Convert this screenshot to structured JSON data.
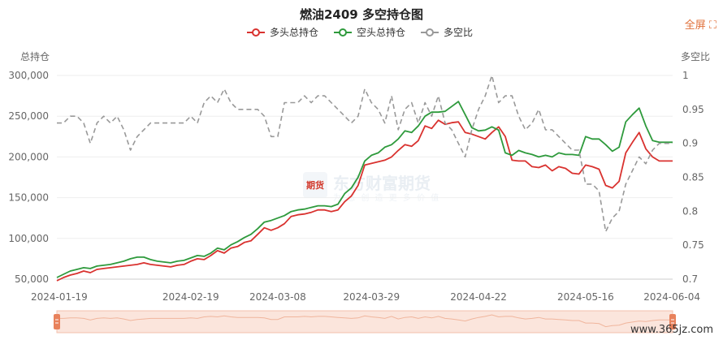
{
  "header": {
    "title": "燃油2409 多空持仓图",
    "fullscreen_label": "全屏"
  },
  "axes": {
    "left_title": "总持仓",
    "right_title": "多空比",
    "x_ticks": [
      "2024-01-19",
      "2024-02-19",
      "2024-03-08",
      "2024-03-29",
      "2024-04-22",
      "2024-05-16",
      "2024-06-04"
    ],
    "left_ticks": [
      "50,000",
      "100,000",
      "150,000",
      "200,000",
      "250,000",
      "300,000"
    ],
    "right_ticks": [
      "0.7",
      "0.75",
      "0.8",
      "0.85",
      "0.9",
      "0.95",
      "1"
    ]
  },
  "watermark": {
    "logo_text": "期货",
    "title": "东方财富期货",
    "subtitle": "为 您 创 造 更 多 价 值"
  },
  "site": {
    "text": "www.365jz.com"
  },
  "colors": {
    "long": "#d9322f",
    "short": "#2e9a3c",
    "ratio": "#999999"
  },
  "chart_data": {
    "type": "line",
    "title": "燃油2409 多空持仓图",
    "xlabel": "",
    "ylabel": "总持仓",
    "y2label": "多空比",
    "ylim": [
      50000,
      300000
    ],
    "y2lim": [
      0.7,
      1.0
    ],
    "grid": true,
    "legend_position": "top",
    "x_tick_labels": [
      "2024-01-19",
      "2024-02-19",
      "2024-03-08",
      "2024-03-29",
      "2024-04-22",
      "2024-05-16",
      "2024-06-04"
    ],
    "x_tick_index": [
      0,
      20,
      33,
      47,
      63,
      79,
      92
    ],
    "series": [
      {
        "name": "多头总持仓",
        "axis": "left",
        "color": "#d9322f",
        "values": [
          48000,
          52000,
          55000,
          57000,
          60000,
          58000,
          62000,
          63000,
          64000,
          65000,
          66000,
          67000,
          68000,
          70000,
          68000,
          67000,
          66000,
          65000,
          67000,
          68000,
          72000,
          75000,
          74000,
          79000,
          85000,
          82000,
          88000,
          90000,
          95000,
          97000,
          105000,
          113000,
          110000,
          113000,
          118000,
          127000,
          129000,
          130000,
          132000,
          135000,
          135000,
          133000,
          135000,
          145000,
          152000,
          165000,
          190000,
          192000,
          194000,
          196000,
          200000,
          208000,
          215000,
          213000,
          220000,
          238000,
          235000,
          245000,
          240000,
          242000,
          243000,
          230000,
          228000,
          225000,
          222000,
          230000,
          237000,
          225000,
          196000,
          195000,
          195000,
          188000,
          187000,
          190000,
          183000,
          188000,
          186000,
          180000,
          179000,
          190000,
          188000,
          185000,
          165000,
          162000,
          170000,
          205000,
          218000,
          230000,
          210000,
          200000,
          195000,
          195000,
          195000
        ]
      },
      {
        "name": "空头总持仓",
        "axis": "left",
        "color": "#2e9a3c",
        "values": [
          52000,
          56000,
          60000,
          62000,
          64000,
          63000,
          66000,
          67000,
          68000,
          70000,
          72000,
          75000,
          77000,
          77000,
          74000,
          72000,
          71000,
          70000,
          72000,
          73000,
          76000,
          79000,
          78000,
          82000,
          88000,
          86000,
          92000,
          96000,
          101000,
          105000,
          112000,
          120000,
          122000,
          125000,
          128000,
          133000,
          135000,
          136000,
          138000,
          140000,
          140000,
          139000,
          142000,
          155000,
          162000,
          175000,
          195000,
          202000,
          205000,
          212000,
          215000,
          222000,
          232000,
          230000,
          238000,
          250000,
          255000,
          255000,
          256000,
          262000,
          268000,
          252000,
          236000,
          232000,
          233000,
          237000,
          233000,
          205000,
          202000,
          208000,
          205000,
          203000,
          200000,
          202000,
          200000,
          205000,
          203000,
          203000,
          202000,
          225000,
          222000,
          222000,
          215000,
          207000,
          212000,
          243000,
          252000,
          260000,
          238000,
          220000,
          218000,
          218000,
          218000
        ]
      },
      {
        "name": "多空比",
        "axis": "right",
        "color": "#999999",
        "dashed": true,
        "values": [
          0.93,
          0.93,
          0.94,
          0.94,
          0.93,
          0.9,
          0.93,
          0.94,
          0.93,
          0.94,
          0.92,
          0.89,
          0.91,
          0.92,
          0.93,
          0.93,
          0.93,
          0.93,
          0.93,
          0.93,
          0.94,
          0.93,
          0.96,
          0.97,
          0.96,
          0.98,
          0.96,
          0.95,
          0.95,
          0.95,
          0.95,
          0.94,
          0.91,
          0.91,
          0.96,
          0.96,
          0.96,
          0.97,
          0.96,
          0.97,
          0.97,
          0.96,
          0.95,
          0.94,
          0.93,
          0.94,
          0.98,
          0.96,
          0.95,
          0.93,
          0.97,
          0.92,
          0.95,
          0.96,
          0.93,
          0.96,
          0.94,
          0.97,
          0.93,
          0.92,
          0.9,
          0.88,
          0.92,
          0.95,
          0.97,
          1.0,
          0.96,
          0.97,
          0.97,
          0.94,
          0.92,
          0.93,
          0.95,
          0.92,
          0.92,
          0.91,
          0.9,
          0.89,
          0.89,
          0.84,
          0.84,
          0.83,
          0.77,
          0.79,
          0.8,
          0.84,
          0.86,
          0.88,
          0.87,
          0.89,
          0.9,
          0.9,
          0.9
        ]
      }
    ]
  }
}
